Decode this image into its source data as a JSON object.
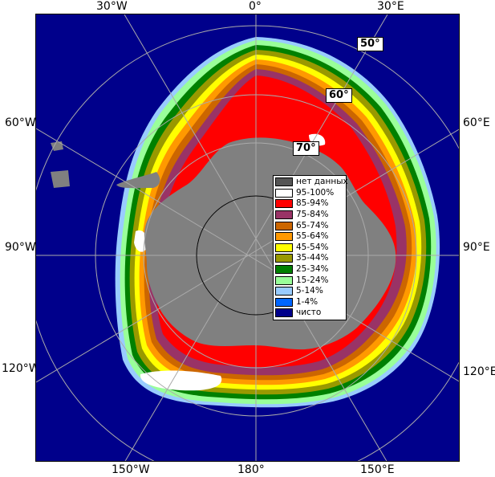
{
  "longitude_labels": {
    "top": [
      "30°W",
      "0°",
      "30°E"
    ],
    "left": [
      "60°W",
      "90°W",
      "120°W"
    ],
    "right": [
      "60°E",
      "90°E",
      "120°E"
    ],
    "bottom": [
      "150°W",
      "180°",
      "150°E"
    ]
  },
  "latitude_labels": [
    "50°",
    "60°",
    "70°"
  ],
  "legend": [
    {
      "label": "нет данных",
      "color": "#555555"
    },
    {
      "label": "95-100%",
      "color": "#ffffff"
    },
    {
      "label": "85-94%",
      "color": "#ff0000"
    },
    {
      "label": "75-84%",
      "color": "#993366"
    },
    {
      "label": "65-74%",
      "color": "#cc6600"
    },
    {
      "label": "55-64%",
      "color": "#ff9900"
    },
    {
      "label": "45-54%",
      "color": "#ffff00"
    },
    {
      "label": "35-44%",
      "color": "#999900"
    },
    {
      "label": "25-34%",
      "color": "#008000"
    },
    {
      "label": "15-24%",
      "color": "#99ff99"
    },
    {
      "label": "5-14%",
      "color": "#99ccff"
    },
    {
      "label": "1-4%",
      "color": "#0066ff"
    },
    {
      "label": "чисто",
      "color": "#00008b"
    }
  ],
  "colors": {
    "ocean": "#00008b",
    "land": "#808080",
    "graticule": "#aaaaaa"
  }
}
